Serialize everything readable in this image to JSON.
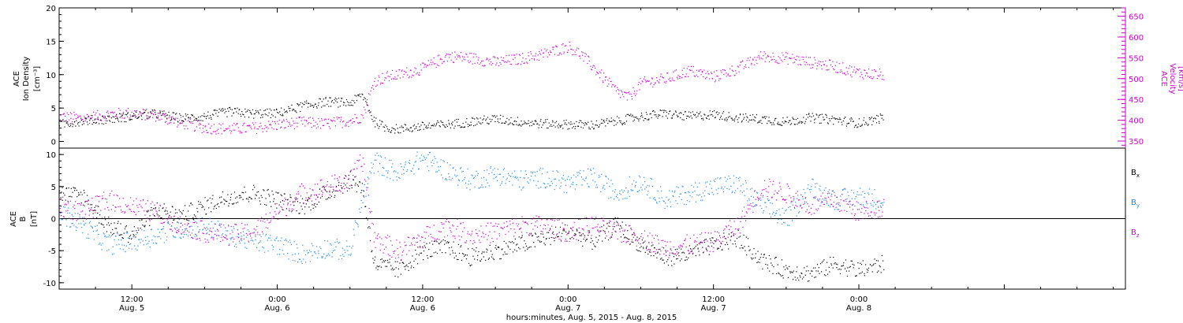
{
  "chart_data": [
    {
      "type": "scatter",
      "panel": "top",
      "x_range": [
        "2015-08-05 06:00",
        "2015-08-08 22:00"
      ],
      "left_axis": {
        "label_lines": [
          "ACE",
          "Ion Density"
        ],
        "unit": "[cm⁻³]",
        "ylim": [
          -1,
          20
        ],
        "ticks": [
          0,
          5,
          10,
          15,
          20
        ],
        "color": "#000000"
      },
      "right_axis": {
        "label_lines": [
          "ACE",
          "Velocity"
        ],
        "unit": "[km/s]",
        "ylim": [
          333,
          670
        ],
        "ticks": [
          350,
          400,
          450,
          500,
          550,
          600,
          650
        ],
        "color": "#cc00cc"
      },
      "series": [
        {
          "axis": "left",
          "color": "#000000",
          "points": [
            [
              "2015-08-05 06:00",
              2.6
            ],
            [
              "2015-08-05 08:00",
              3.2
            ],
            [
              "2015-08-05 10:00",
              3.4
            ],
            [
              "2015-08-05 12:00",
              3.8
            ],
            [
              "2015-08-05 14:00",
              4.2
            ],
            [
              "2015-08-05 16:00",
              3.5
            ],
            [
              "2015-08-05 18:00",
              3.8
            ],
            [
              "2015-08-05 20:00",
              4.5
            ],
            [
              "2015-08-05 22:00",
              4.2
            ],
            [
              "2015-08-06 00:00",
              4.3
            ],
            [
              "2015-08-06 02:00",
              5.3
            ],
            [
              "2015-08-06 04:00",
              6.0
            ],
            [
              "2015-08-06 06:00",
              5.8
            ],
            [
              "2015-08-06 07:00",
              7.0
            ],
            [
              "2015-08-06 08:00",
              3.0
            ],
            [
              "2015-08-06 09:00",
              2.1
            ],
            [
              "2015-08-06 10:00",
              1.9
            ],
            [
              "2015-08-06 12:00",
              2.3
            ],
            [
              "2015-08-06 14:00",
              2.6
            ],
            [
              "2015-08-06 16:00",
              3.0
            ],
            [
              "2015-08-06 18:00",
              3.4
            ],
            [
              "2015-08-06 20:00",
              3.0
            ],
            [
              "2015-08-06 22:00",
              2.7
            ],
            [
              "2015-08-07 00:00",
              2.6
            ],
            [
              "2015-08-07 02:00",
              2.5
            ],
            [
              "2015-08-07 04:00",
              3.1
            ],
            [
              "2015-08-07 06:00",
              3.8
            ],
            [
              "2015-08-07 08:00",
              4.2
            ],
            [
              "2015-08-07 10:00",
              3.8
            ],
            [
              "2015-08-07 12:00",
              4.1
            ],
            [
              "2015-08-07 14:00",
              3.6
            ],
            [
              "2015-08-07 16:00",
              3.4
            ],
            [
              "2015-08-07 18:00",
              3.0
            ],
            [
              "2015-08-07 20:00",
              3.6
            ],
            [
              "2015-08-07 22:00",
              3.3
            ],
            [
              "2015-08-08 00:00",
              2.8
            ],
            [
              "2015-08-08 02:00",
              3.6
            ]
          ]
        },
        {
          "axis": "right",
          "color": "#cc00cc",
          "points": [
            [
              "2015-08-05 06:00",
              410
            ],
            [
              "2015-08-05 08:00",
              405
            ],
            [
              "2015-08-05 10:00",
              415
            ],
            [
              "2015-08-05 12:00",
              418
            ],
            [
              "2015-08-05 14:00",
              412
            ],
            [
              "2015-08-05 16:00",
              395
            ],
            [
              "2015-08-05 18:00",
              383
            ],
            [
              "2015-08-05 20:00",
              380
            ],
            [
              "2015-08-05 22:00",
              382
            ],
            [
              "2015-08-06 00:00",
              390
            ],
            [
              "2015-08-06 02:00",
              396
            ],
            [
              "2015-08-06 04:00",
              392
            ],
            [
              "2015-08-06 06:00",
              400
            ],
            [
              "2015-08-06 07:00",
              410
            ],
            [
              "2015-08-06 08:00",
              495
            ],
            [
              "2015-08-06 09:00",
              505
            ],
            [
              "2015-08-06 10:00",
              510
            ],
            [
              "2015-08-06 12:00",
              525
            ],
            [
              "2015-08-06 14:00",
              555
            ],
            [
              "2015-08-06 16:00",
              550
            ],
            [
              "2015-08-06 18:00",
              540
            ],
            [
              "2015-08-06 20:00",
              548
            ],
            [
              "2015-08-06 22:00",
              560
            ],
            [
              "2015-08-07 00:00",
              578
            ],
            [
              "2015-08-07 01:00",
              560
            ],
            [
              "2015-08-07 02:00",
              530
            ],
            [
              "2015-08-07 04:00",
              470
            ],
            [
              "2015-08-07 05:00",
              455
            ],
            [
              "2015-08-07 06:00",
              490
            ],
            [
              "2015-08-07 08:00",
              500
            ],
            [
              "2015-08-07 10:00",
              520
            ],
            [
              "2015-08-07 12:00",
              505
            ],
            [
              "2015-08-07 14:00",
              525
            ],
            [
              "2015-08-07 16:00",
              555
            ],
            [
              "2015-08-07 18:00",
              550
            ],
            [
              "2015-08-07 20:00",
              540
            ],
            [
              "2015-08-07 22:00",
              530
            ],
            [
              "2015-08-08 00:00",
              515
            ],
            [
              "2015-08-08 02:00",
              510
            ]
          ]
        }
      ]
    },
    {
      "type": "scatter",
      "panel": "bottom",
      "x_range": [
        "2015-08-05 06:00",
        "2015-08-08 22:00"
      ],
      "left_axis": {
        "label_lines": [
          "ACE",
          "B"
        ],
        "unit": "[nT]",
        "ylim": [
          -11,
          11
        ],
        "ticks": [
          -10,
          -5,
          0,
          5,
          10
        ],
        "color": "#000000"
      },
      "zero_line": true,
      "legend": [
        {
          "label": "B",
          "sub": "x",
          "color": "#000000"
        },
        {
          "label": "B",
          "sub": "y",
          "color": "#1e88e5"
        },
        {
          "label": "B",
          "sub": "z",
          "color": "#cc00cc"
        }
      ],
      "series": [
        {
          "name": "Bx",
          "color": "#000000",
          "points": [
            [
              "2015-08-05 06:00",
              4.0
            ],
            [
              "2015-08-05 08:00",
              3.5
            ],
            [
              "2015-08-05 10:00",
              -1.0
            ],
            [
              "2015-08-05 12:00",
              -2.5
            ],
            [
              "2015-08-05 14:00",
              1.5
            ],
            [
              "2015-08-05 16:00",
              0.5
            ],
            [
              "2015-08-05 18:00",
              2.0
            ],
            [
              "2015-08-05 20:00",
              3.5
            ],
            [
              "2015-08-05 22:00",
              4.0
            ],
            [
              "2015-08-06 00:00",
              3.0
            ],
            [
              "2015-08-06 02:00",
              2.0
            ],
            [
              "2015-08-06 04:00",
              4.0
            ],
            [
              "2015-08-06 06:00",
              6.0
            ],
            [
              "2015-08-06 07:00",
              5.0
            ],
            [
              "2015-08-06 08:00",
              -7.0
            ],
            [
              "2015-08-06 10:00",
              -8.0
            ],
            [
              "2015-08-06 12:00",
              -5.0
            ],
            [
              "2015-08-06 14:00",
              -4.5
            ],
            [
              "2015-08-06 16:00",
              -6.0
            ],
            [
              "2015-08-06 18:00",
              -5.0
            ],
            [
              "2015-08-06 20:00",
              -4.0
            ],
            [
              "2015-08-06 22:00",
              -3.0
            ],
            [
              "2015-08-07 00:00",
              -2.0
            ],
            [
              "2015-08-07 02:00",
              -3.5
            ],
            [
              "2015-08-07 04:00",
              -1.0
            ],
            [
              "2015-08-07 06:00",
              -4.0
            ],
            [
              "2015-08-07 08:00",
              -6.0
            ],
            [
              "2015-08-07 10:00",
              -5.5
            ],
            [
              "2015-08-07 12:00",
              -4.0
            ],
            [
              "2015-08-07 14:00",
              -3.0
            ],
            [
              "2015-08-07 16:00",
              -6.5
            ],
            [
              "2015-08-07 18:00",
              -8.0
            ],
            [
              "2015-08-07 20:00",
              -8.5
            ],
            [
              "2015-08-07 22:00",
              -7.0
            ],
            [
              "2015-08-08 00:00",
              -8.0
            ],
            [
              "2015-08-08 02:00",
              -7.0
            ]
          ]
        },
        {
          "name": "By",
          "color": "#1e88e5",
          "points": [
            [
              "2015-08-05 06:00",
              1.0
            ],
            [
              "2015-08-05 08:00",
              -1.0
            ],
            [
              "2015-08-05 10:00",
              -4.0
            ],
            [
              "2015-08-05 12:00",
              -3.5
            ],
            [
              "2015-08-05 14:00",
              -2.5
            ],
            [
              "2015-08-05 16:00",
              -1.5
            ],
            [
              "2015-08-05 18:00",
              -1.0
            ],
            [
              "2015-08-05 20:00",
              -2.5
            ],
            [
              "2015-08-05 22:00",
              -3.5
            ],
            [
              "2015-08-06 00:00",
              -4.0
            ],
            [
              "2015-08-06 02:00",
              -5.5
            ],
            [
              "2015-08-06 04:00",
              -4.5
            ],
            [
              "2015-08-06 06:00",
              -5.0
            ],
            [
              "2015-08-06 07:00",
              3.0
            ],
            [
              "2015-08-06 08:00",
              9.0
            ],
            [
              "2015-08-06 10:00",
              7.0
            ],
            [
              "2015-08-06 12:00",
              9.5
            ],
            [
              "2015-08-06 14:00",
              7.5
            ],
            [
              "2015-08-06 16:00",
              6.0
            ],
            [
              "2015-08-06 18:00",
              7.0
            ],
            [
              "2015-08-06 20:00",
              6.0
            ],
            [
              "2015-08-06 22:00",
              6.5
            ],
            [
              "2015-08-07 00:00",
              5.5
            ],
            [
              "2015-08-07 02:00",
              6.5
            ],
            [
              "2015-08-07 04:00",
              4.0
            ],
            [
              "2015-08-07 06:00",
              6.0
            ],
            [
              "2015-08-07 08:00",
              3.0
            ],
            [
              "2015-08-07 10:00",
              4.0
            ],
            [
              "2015-08-07 12:00",
              5.0
            ],
            [
              "2015-08-07 14:00",
              5.5
            ],
            [
              "2015-08-07 16:00",
              2.0
            ],
            [
              "2015-08-07 18:00",
              0.0
            ],
            [
              "2015-08-07 20:00",
              5.0
            ],
            [
              "2015-08-07 22:00",
              3.0
            ],
            [
              "2015-08-08 00:00",
              3.5
            ],
            [
              "2015-08-08 02:00",
              3.0
            ]
          ]
        },
        {
          "name": "Bz",
          "color": "#cc00cc",
          "points": [
            [
              "2015-08-05 06:00",
              2.0
            ],
            [
              "2015-08-05 08:00",
              1.0
            ],
            [
              "2015-08-05 10:00",
              3.0
            ],
            [
              "2015-08-05 12:00",
              2.0
            ],
            [
              "2015-08-05 14:00",
              1.0
            ],
            [
              "2015-08-05 16:00",
              -1.0
            ],
            [
              "2015-08-05 18:00",
              -2.0
            ],
            [
              "2015-08-05 20:00",
              -2.5
            ],
            [
              "2015-08-05 22:00",
              -2.0
            ],
            [
              "2015-08-06 00:00",
              1.0
            ],
            [
              "2015-08-06 02:00",
              4.0
            ],
            [
              "2015-08-06 04:00",
              5.0
            ],
            [
              "2015-08-06 06:00",
              6.0
            ],
            [
              "2015-08-06 07:00",
              9.0
            ],
            [
              "2015-08-06 08:00",
              -3.0
            ],
            [
              "2015-08-06 10:00",
              -5.0
            ],
            [
              "2015-08-06 12:00",
              -3.0
            ],
            [
              "2015-08-06 14:00",
              -1.0
            ],
            [
              "2015-08-06 16:00",
              -2.5
            ],
            [
              "2015-08-06 18:00",
              -2.0
            ],
            [
              "2015-08-06 20:00",
              -1.0
            ],
            [
              "2015-08-06 22:00",
              -1.0
            ],
            [
              "2015-08-07 00:00",
              -2.0
            ],
            [
              "2015-08-07 02:00",
              -1.0
            ],
            [
              "2015-08-07 04:00",
              -2.0
            ],
            [
              "2015-08-07 06:00",
              -3.0
            ],
            [
              "2015-08-07 08:00",
              -4.5
            ],
            [
              "2015-08-07 10:00",
              -4.0
            ],
            [
              "2015-08-07 12:00",
              -3.5
            ],
            [
              "2015-08-07 14:00",
              -1.0
            ],
            [
              "2015-08-07 16:00",
              5.0
            ],
            [
              "2015-08-07 18:00",
              4.0
            ],
            [
              "2015-08-07 20:00",
              2.0
            ],
            [
              "2015-08-07 22:00",
              3.0
            ],
            [
              "2015-08-08 00:00",
              1.0
            ],
            [
              "2015-08-08 02:00",
              2.0
            ]
          ]
        }
      ]
    }
  ],
  "x_axis": {
    "ticks": [
      {
        "time": "2015-08-05 12:00",
        "label": "12:00",
        "sublabel": "Aug. 5"
      },
      {
        "time": "2015-08-06 00:00",
        "label": "0:00",
        "sublabel": "Aug. 6"
      },
      {
        "time": "2015-08-06 12:00",
        "label": "12:00",
        "sublabel": "Aug. 6"
      },
      {
        "time": "2015-08-07 00:00",
        "label": "0:00",
        "sublabel": "Aug. 7"
      },
      {
        "time": "2015-08-07 12:00",
        "label": "12:00",
        "sublabel": "Aug. 7"
      },
      {
        "time": "2015-08-08 00:00",
        "label": "0:00",
        "sublabel": "Aug. 8"
      }
    ],
    "title": "hours:minutes, Aug.  5, 2015 - Aug.  8, 2015"
  }
}
